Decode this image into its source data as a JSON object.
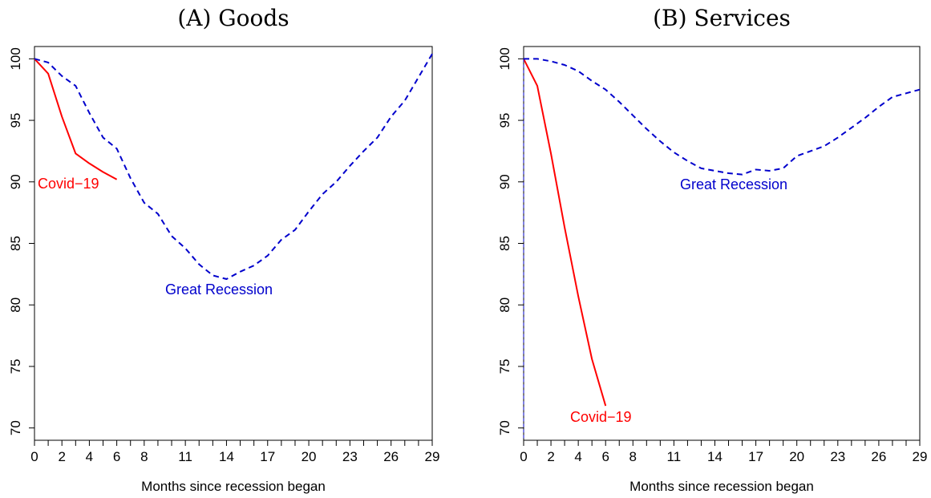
{
  "chart_data": [
    {
      "type": "line",
      "title": "(A) Goods",
      "xlabel": "Months since recession began",
      "ylabel": "",
      "xlim": [
        0,
        29
      ],
      "ylim": [
        69,
        101
      ],
      "xticks": [
        0,
        2,
        4,
        6,
        8,
        11,
        14,
        17,
        20,
        23,
        26,
        29
      ],
      "yticks": [
        70,
        75,
        80,
        85,
        90,
        95,
        100
      ],
      "series": [
        {
          "name": "Covid−19",
          "color": "#ff0000",
          "style": "solid",
          "x": [
            0,
            1,
            2,
            3,
            4,
            5,
            6
          ],
          "y": [
            100,
            98.8,
            95.3,
            92.3,
            91.5,
            90.8,
            90.2
          ]
        },
        {
          "name": "Great Recession",
          "color": "#0000cc",
          "style": "dashed",
          "x": [
            0,
            1,
            2,
            3,
            4,
            5,
            6,
            7,
            8,
            9,
            10,
            11,
            12,
            13,
            14,
            15,
            16,
            17,
            18,
            19,
            20,
            21,
            22,
            23,
            24,
            25,
            26,
            27,
            28,
            29
          ],
          "y": [
            100,
            99.7,
            98.6,
            97.8,
            95.6,
            93.6,
            92.7,
            90.3,
            88.3,
            87.4,
            85.6,
            84.6,
            83.3,
            82.4,
            82.1,
            82.7,
            83.2,
            84.0,
            85.3,
            86.1,
            87.6,
            89.0,
            90.0,
            91.3,
            92.5,
            93.6,
            95.3,
            96.6,
            98.5,
            100.4
          ]
        }
      ]
    },
    {
      "type": "line",
      "title": "(B) Services",
      "xlabel": "Months since recession began",
      "ylabel": "",
      "xlim": [
        0,
        29
      ],
      "ylim": [
        69,
        101
      ],
      "xticks": [
        0,
        2,
        4,
        6,
        8,
        11,
        14,
        17,
        20,
        23,
        26,
        29
      ],
      "yticks": [
        70,
        75,
        80,
        85,
        90,
        95,
        100
      ],
      "series": [
        {
          "name": "Covid−19",
          "color": "#ff0000",
          "style": "solid",
          "x": [
            0,
            1,
            2,
            3,
            4,
            5,
            6
          ],
          "y": [
            100,
            97.8,
            92.3,
            86.3,
            80.7,
            75.6,
            71.8
          ]
        },
        {
          "name": "Great Recession",
          "color": "#0000cc",
          "style": "dashed",
          "x": [
            0,
            1,
            2,
            3,
            4,
            5,
            6,
            7,
            8,
            9,
            10,
            11,
            12,
            13,
            14,
            15,
            16,
            17,
            18,
            19,
            20,
            21,
            22,
            23,
            24,
            25,
            26,
            27,
            28,
            29
          ],
          "y": [
            100,
            100,
            99.8,
            99.5,
            99.0,
            98.2,
            97.5,
            96.5,
            95.4,
            94.3,
            93.3,
            92.4,
            91.7,
            91.1,
            90.9,
            90.7,
            90.6,
            91.0,
            90.9,
            91.1,
            92.1,
            92.5,
            92.9,
            93.6,
            94.4,
            95.2,
            96.1,
            96.9,
            97.2,
            97.5
          ]
        }
      ]
    }
  ]
}
